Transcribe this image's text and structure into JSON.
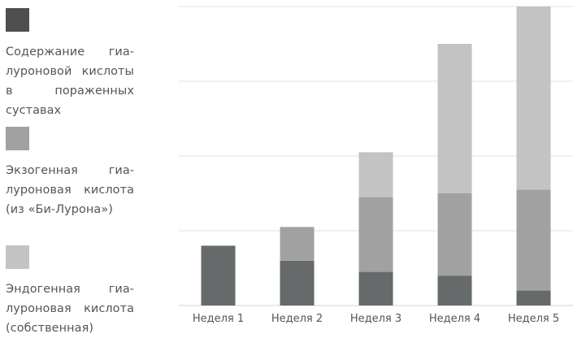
{
  "legend": [
    {
      "label": "Содержание гиа­луроновой кисло­ты в пораженных суставах",
      "color": "#666a6a"
    },
    {
      "label": "Экзогенная гиа­луроновая кисло­та (из «Би-Луро­на»)",
      "color": "#a1a1a1"
    },
    {
      "label": "Эндогенная гиа­луроновая кисло­та (собственная)",
      "color": "#c3c3c4"
    }
  ],
  "chart_data": {
    "type": "bar",
    "stacked": true,
    "categories": [
      "Неделя 1",
      "Неделя 2",
      "Неделя 3",
      "Неделя 4",
      "Неделя 5"
    ],
    "series": [
      {
        "name": "Содержание гиалуроновой кислоты в пораженных суставах",
        "color": "#666a6a",
        "values": [
          1.6,
          1.2,
          0.9,
          0.8,
          0.4
        ]
      },
      {
        "name": "Экзогенная гиалуроновая кислота (из «Би-Лурона»)",
        "color": "#a1a1a1",
        "values": [
          0,
          0.9,
          2.0,
          2.2,
          2.7
        ]
      },
      {
        "name": "Эндогенная гиалуроновая кислота (собственная)",
        "color": "#c3c3c4",
        "values": [
          0,
          0,
          1.2,
          4.0,
          4.9
        ]
      }
    ],
    "ylim": [
      0,
      8
    ],
    "gridlines": [
      2,
      4,
      6,
      8
    ],
    "grid": true,
    "xlabel": "",
    "ylabel": "",
    "legend_position": "left"
  }
}
